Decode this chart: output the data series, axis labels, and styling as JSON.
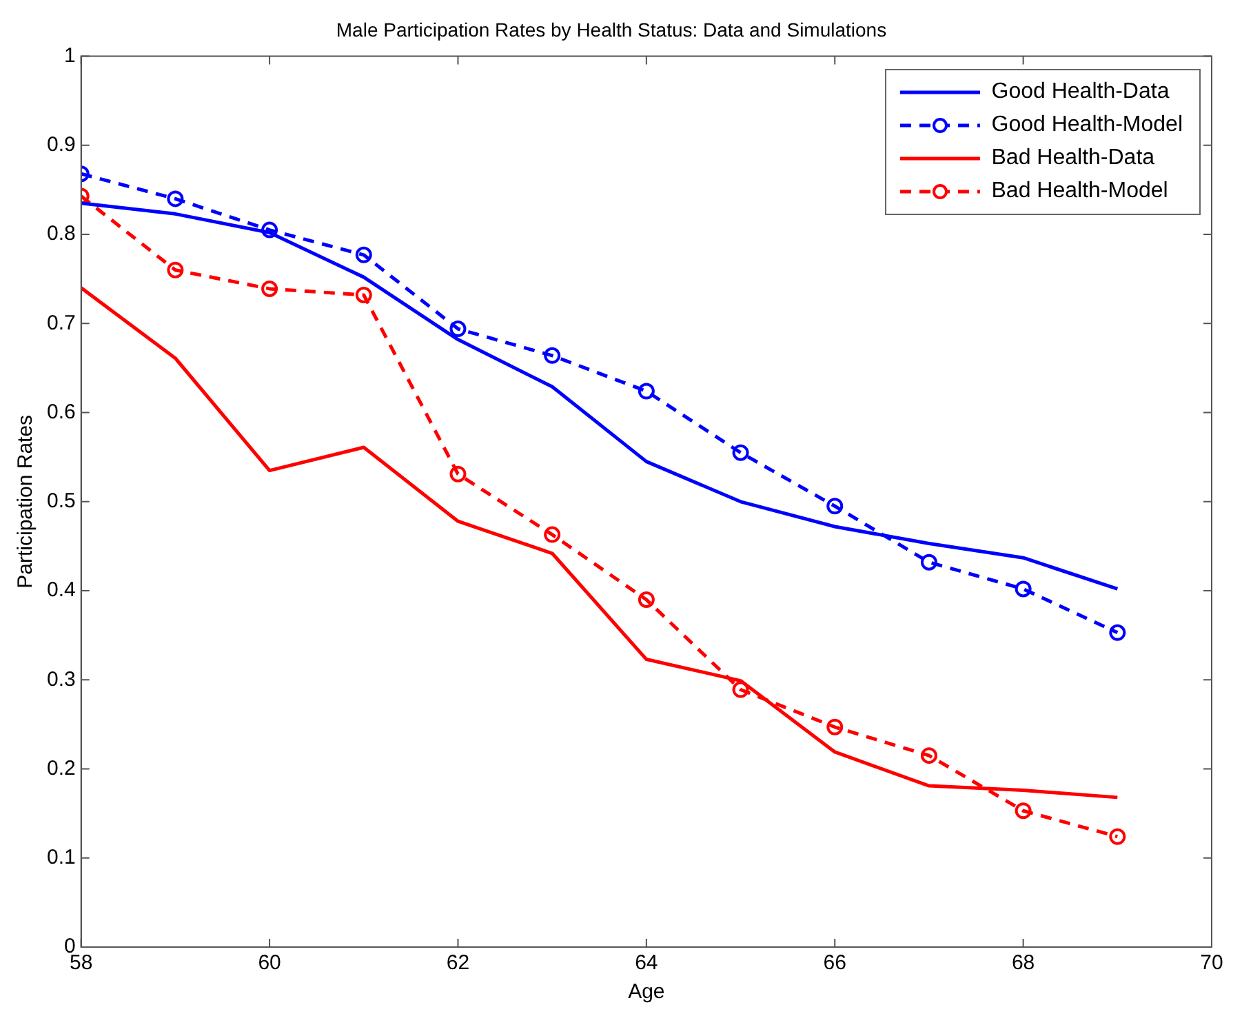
{
  "chart_data": {
    "type": "line",
    "title": "Male Participation Rates by Health Status: Data and Simulations",
    "xlabel": "Age",
    "ylabel": "Participation Rates",
    "x": [
      58,
      59,
      60,
      61,
      62,
      63,
      64,
      65,
      66,
      67,
      68,
      69
    ],
    "series": [
      {
        "name": "Good Health-Data",
        "color": "#0000ff",
        "marker": "none",
        "line_style": "solid",
        "values": [
          0.835,
          0.823,
          0.802,
          0.752,
          0.682,
          0.629,
          0.545,
          0.5,
          0.472,
          0.453,
          0.437,
          0.402
        ]
      },
      {
        "name": "Good Health-Model",
        "color": "#0000ff",
        "marker": "circle",
        "line_style": "dashed",
        "values": [
          0.868,
          0.84,
          0.805,
          0.777,
          0.694,
          0.664,
          0.624,
          0.555,
          0.495,
          0.432,
          0.402,
          0.353
        ]
      },
      {
        "name": "Bad Health-Data",
        "color": "#ff0000",
        "marker": "none",
        "line_style": "solid",
        "values": [
          0.74,
          0.661,
          0.535,
          0.561,
          0.478,
          0.442,
          0.323,
          0.299,
          0.219,
          0.181,
          0.176,
          0.168
        ]
      },
      {
        "name": "Bad Health-Model",
        "color": "#ff0000",
        "marker": "circle",
        "line_style": "dashed",
        "values": [
          0.843,
          0.76,
          0.739,
          0.732,
          0.531,
          0.463,
          0.39,
          0.289,
          0.247,
          0.215,
          0.153,
          0.124
        ]
      }
    ],
    "xlim": [
      58,
      70
    ],
    "xticks": [
      58,
      60,
      62,
      64,
      66,
      68,
      70
    ],
    "ylim": [
      0,
      1
    ],
    "yticks": [
      0,
      0.1,
      0.2,
      0.3,
      0.4,
      0.5,
      0.6,
      0.7,
      0.8,
      0.9,
      1
    ],
    "grid": false,
    "legend": "top right"
  }
}
